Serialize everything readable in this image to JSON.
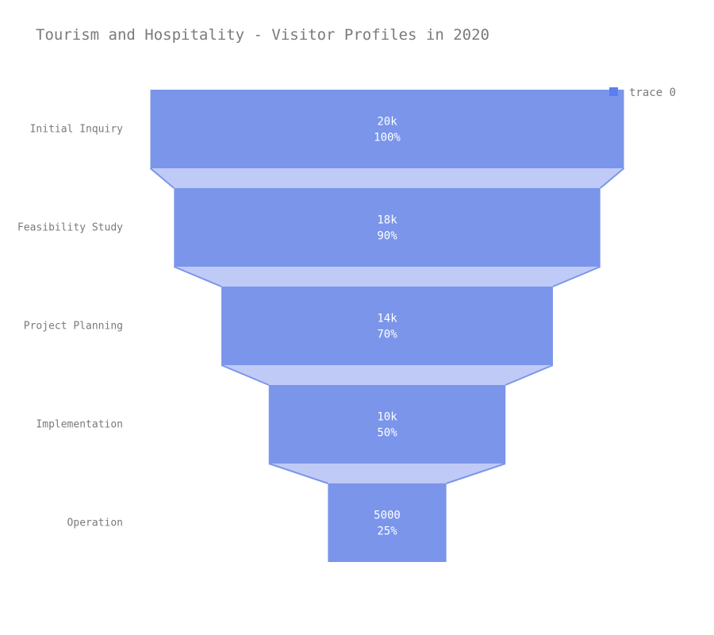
{
  "chart_data": {
    "type": "funnel",
    "title": "Tourism and Hospitality - Visitor Profiles in 2020",
    "categories": [
      "Initial Inquiry",
      "Feasibility Study",
      "Project Planning",
      "Implementation",
      "Operation"
    ],
    "series": [
      {
        "name": "trace 0",
        "values": [
          20000,
          18000,
          14000,
          10000,
          5000
        ],
        "value_labels": [
          "20k",
          "18k",
          "14k",
          "10k",
          "5000"
        ],
        "percent_labels": [
          "100%",
          "90%",
          "70%",
          "50%",
          "25%"
        ]
      }
    ],
    "legend": {
      "position": "top-right",
      "entries": [
        "trace 0"
      ]
    },
    "colors": {
      "bar": "#7a95ea",
      "connector": "#bfcbf6",
      "connector_line": "#7a95ea",
      "text_inside": "#ffffff",
      "text_axis": "#7a7a7a",
      "legend_swatch": "#5b7ff0"
    }
  }
}
